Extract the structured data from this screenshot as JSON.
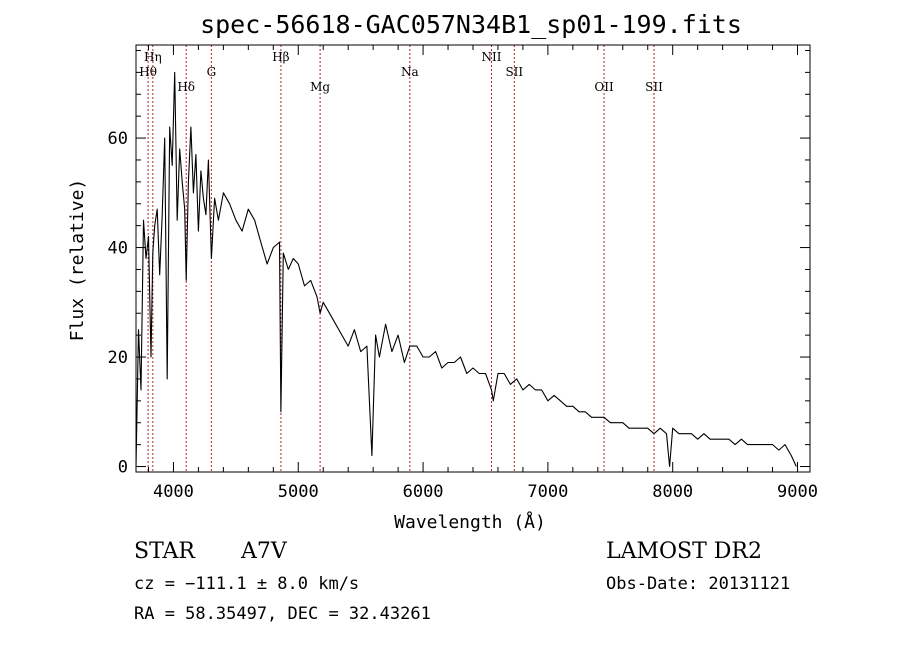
{
  "chart_data": {
    "type": "line",
    "title": "spec-56618-GAC057N34B1_sp01-199.fits",
    "xlabel": "Wavelength (Å)",
    "ylabel": "Flux (relative)",
    "xlim": [
      3700,
      9100
    ],
    "ylim": [
      -1,
      77
    ],
    "x_ticks": [
      4000,
      5000,
      6000,
      7000,
      8000,
      9000
    ],
    "x_tick_labels": [
      "4000",
      "5000",
      "6000",
      "7000",
      "8000",
      "9000"
    ],
    "y_ticks": [
      0,
      20,
      40,
      60
    ],
    "y_tick_labels": [
      "0",
      "20",
      "40",
      "60"
    ],
    "grid": false,
    "line_color": "#000000",
    "marker_color": "#b22222",
    "spectral_lines": [
      {
        "name": "Hη",
        "wavelength": 3835,
        "row": 0
      },
      {
        "name": "Hθ",
        "wavelength": 3797,
        "row": 1
      },
      {
        "name": "Hδ",
        "wavelength": 4102,
        "row": 2
      },
      {
        "name": "G",
        "wavelength": 4304,
        "row": 1
      },
      {
        "name": "Hβ",
        "wavelength": 4861,
        "row": 0
      },
      {
        "name": "Mg",
        "wavelength": 5175,
        "row": 2
      },
      {
        "name": "Na",
        "wavelength": 5894,
        "row": 1
      },
      {
        "name": "NII",
        "wavelength": 6548,
        "row": 0
      },
      {
        "name": "SII",
        "wavelength": 6731,
        "row": 1
      },
      {
        "name": "OII",
        "wavelength": 7450,
        "row": 2
      },
      {
        "name": "SII",
        "wavelength": 7850,
        "row": 2
      }
    ],
    "series": [
      {
        "x": [
          3700,
          3720,
          3740,
          3760,
          3780,
          3800,
          3820,
          3835,
          3850,
          3870,
          3890,
          3910,
          3930,
          3950,
          3970,
          3990,
          4010,
          4030,
          4050,
          4070,
          4090,
          4102,
          4120,
          4140,
          4160,
          4180,
          4200,
          4220,
          4240,
          4260,
          4280,
          4304,
          4330,
          4360,
          4400,
          4450,
          4500,
          4550,
          4600,
          4650,
          4700,
          4750,
          4800,
          4850,
          4861,
          4880,
          4920,
          4960,
          5000,
          5050,
          5100,
          5150,
          5175,
          5200,
          5250,
          5300,
          5350,
          5400,
          5450,
          5500,
          5550,
          5590,
          5620,
          5650,
          5700,
          5750,
          5800,
          5850,
          5894,
          5950,
          6000,
          6050,
          6100,
          6150,
          6200,
          6250,
          6300,
          6350,
          6400,
          6450,
          6500,
          6548,
          6563,
          6600,
          6650,
          6700,
          6750,
          6800,
          6850,
          6900,
          6950,
          7000,
          7050,
          7100,
          7150,
          7200,
          7250,
          7300,
          7350,
          7400,
          7450,
          7500,
          7550,
          7600,
          7650,
          7700,
          7750,
          7800,
          7850,
          7900,
          7950,
          7975,
          8000,
          8050,
          8100,
          8150,
          8200,
          8250,
          8300,
          8350,
          8400,
          8450,
          8500,
          8550,
          8600,
          8650,
          8700,
          8750,
          8800,
          8850,
          8900,
          8950,
          8990
        ],
        "y": [
          0,
          25,
          14,
          45,
          38,
          42,
          20,
          39,
          44,
          47,
          35,
          46,
          60,
          16,
          62,
          55,
          72,
          45,
          58,
          52,
          47,
          34,
          52,
          62,
          50,
          57,
          43,
          54,
          49,
          46,
          56,
          38,
          49,
          45,
          50,
          48,
          45,
          43,
          47,
          45,
          41,
          37,
          40,
          41,
          10,
          39,
          36,
          38,
          37,
          33,
          34,
          31,
          28,
          30,
          28,
          26,
          24,
          22,
          25,
          21,
          22,
          2,
          24,
          20,
          26,
          21,
          24,
          19,
          22,
          22,
          20,
          20,
          21,
          18,
          19,
          19,
          20,
          17,
          18,
          17,
          17,
          14,
          12,
          17,
          17,
          15,
          16,
          14,
          15,
          14,
          14,
          12,
          13,
          12,
          11,
          11,
          10,
          10,
          9,
          9,
          9,
          8,
          8,
          8,
          7,
          7,
          7,
          7,
          6,
          7,
          6,
          0,
          7,
          6,
          6,
          6,
          5,
          6,
          5,
          5,
          5,
          5,
          4,
          5,
          4,
          4,
          4,
          4,
          4,
          3,
          4,
          2,
          0
        ]
      }
    ]
  },
  "info": {
    "object_class": "STAR",
    "subclass": "A7V",
    "survey": "LAMOST DR2",
    "cz": "cz = −111.1 ± 8.0 km/s",
    "obs_date": "Obs-Date: 20131121",
    "coords": "RA =  58.35497, DEC =  32.43261"
  }
}
